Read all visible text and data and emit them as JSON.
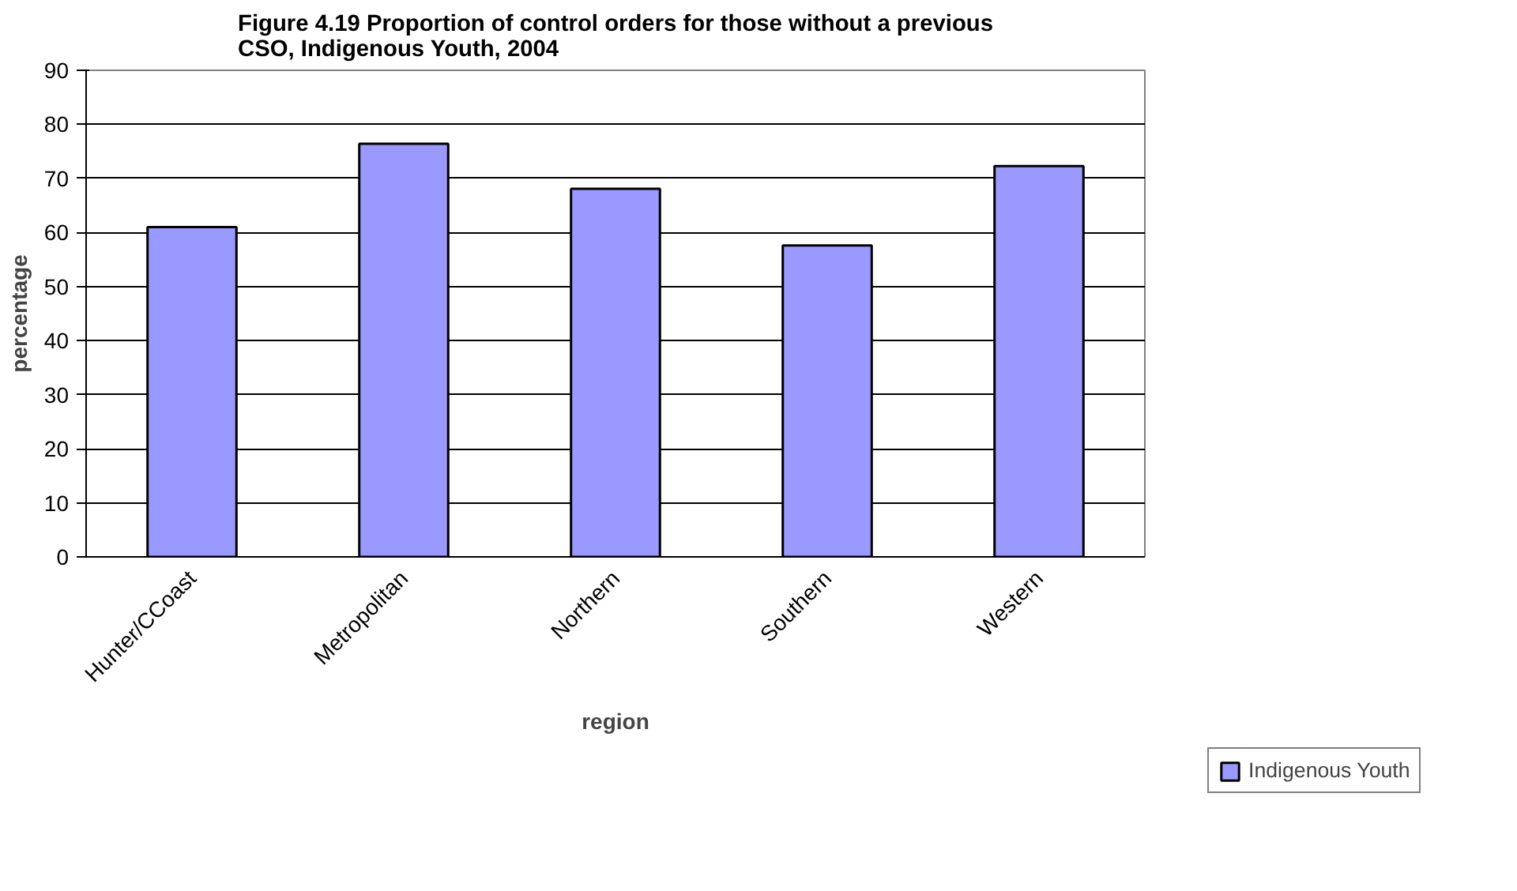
{
  "chart_data": {
    "type": "bar",
    "title": "Figure 4.19 Proportion of control orders for those without a previous\nCSO, Indigenous Youth, 2004",
    "xlabel": "region",
    "ylabel": "percentage",
    "categories": [
      "Hunter/CCoast",
      "Metropolitan",
      "Northern",
      "Southern",
      "Western"
    ],
    "series": [
      {
        "name": "Indigenous Youth",
        "color": "#9999ff",
        "values": [
          61,
          76.4,
          68.1,
          57.6,
          72.3
        ]
      }
    ],
    "ylim": [
      0,
      90
    ],
    "yticks": [
      0,
      10,
      20,
      30,
      40,
      50,
      60,
      70,
      80,
      90
    ],
    "grid": "y",
    "legend": "bottom right"
  }
}
